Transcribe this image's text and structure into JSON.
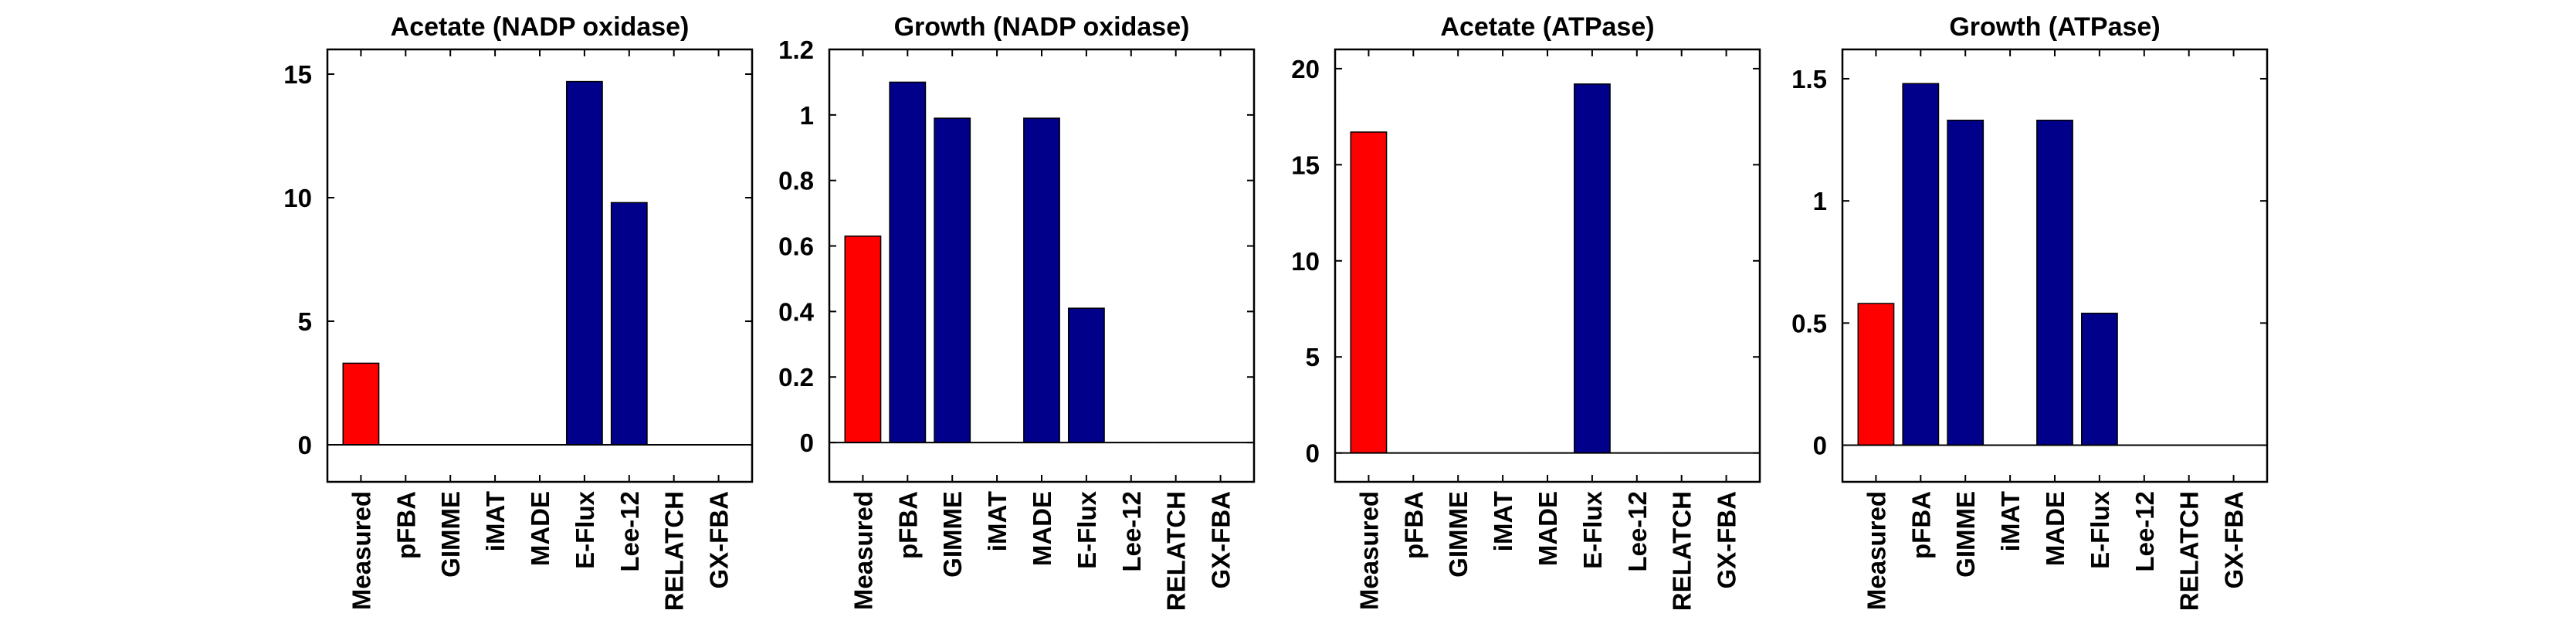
{
  "colors": {
    "measured": "#ff0000",
    "predicted": "#00008b",
    "axis": "#000000"
  },
  "chart_data": [
    {
      "type": "bar",
      "title": "Acetate (NADP oxidase)",
      "categories": [
        "Measured",
        "pFBA",
        "GIMME",
        "iMAT",
        "MADE",
        "E-Flux",
        "Lee-12",
        "RELATCH",
        "GX-FBA"
      ],
      "values": [
        3.3,
        0,
        0,
        0,
        0,
        14.7,
        9.8,
        0,
        0
      ],
      "bar_colors": [
        "measured",
        "predicted",
        "predicted",
        "predicted",
        "predicted",
        "predicted",
        "predicted",
        "predicted",
        "predicted"
      ],
      "ylim": [
        -1.5,
        16
      ],
      "yticks": [
        0,
        5,
        10,
        15
      ],
      "yticklabels": [
        "0",
        "5",
        "10",
        "15"
      ],
      "grid": false
    },
    {
      "type": "bar",
      "title": "Growth (NADP oxidase)",
      "categories": [
        "Measured",
        "pFBA",
        "GIMME",
        "iMAT",
        "MADE",
        "E-Flux",
        "Lee-12",
        "RELATCH",
        "GX-FBA"
      ],
      "values": [
        0.63,
        1.1,
        0.99,
        0,
        0.99,
        0.41,
        0,
        0,
        0
      ],
      "bar_colors": [
        "measured",
        "predicted",
        "predicted",
        "predicted",
        "predicted",
        "predicted",
        "predicted",
        "predicted",
        "predicted"
      ],
      "ylim": [
        -0.12,
        1.2
      ],
      "yticks": [
        0,
        0.2,
        0.4,
        0.6,
        0.8,
        1,
        1.2
      ],
      "yticklabels": [
        "0",
        "0.2",
        "0.4",
        "0.6",
        "0.8",
        "1",
        "1.2"
      ],
      "grid": false
    },
    {
      "type": "bar",
      "title": "Acetate (ATPase)",
      "categories": [
        "Measured",
        "pFBA",
        "GIMME",
        "iMAT",
        "MADE",
        "E-Flux",
        "Lee-12",
        "RELATCH",
        "GX-FBA"
      ],
      "values": [
        16.7,
        0,
        0,
        0,
        0,
        19.2,
        0,
        0,
        0
      ],
      "bar_colors": [
        "measured",
        "predicted",
        "predicted",
        "predicted",
        "predicted",
        "predicted",
        "predicted",
        "predicted",
        "predicted"
      ],
      "ylim": [
        -1.5,
        21
      ],
      "yticks": [
        0,
        5,
        10,
        15,
        20
      ],
      "yticklabels": [
        "0",
        "5",
        "10",
        "15",
        "20"
      ],
      "grid": false
    },
    {
      "type": "bar",
      "title": "Growth (ATPase)",
      "categories": [
        "Measured",
        "pFBA",
        "GIMME",
        "iMAT",
        "MADE",
        "E-Flux",
        "Lee-12",
        "RELATCH",
        "GX-FBA"
      ],
      "values": [
        0.58,
        1.48,
        1.33,
        0,
        1.33,
        0.54,
        0,
        0,
        0
      ],
      "bar_colors": [
        "measured",
        "predicted",
        "predicted",
        "predicted",
        "predicted",
        "predicted",
        "predicted",
        "predicted",
        "predicted"
      ],
      "ylim": [
        -0.15,
        1.62
      ],
      "yticks": [
        0,
        0.5,
        1,
        1.5
      ],
      "yticklabels": [
        "0",
        "0.5",
        "1",
        "1.5"
      ],
      "grid": false
    }
  ]
}
